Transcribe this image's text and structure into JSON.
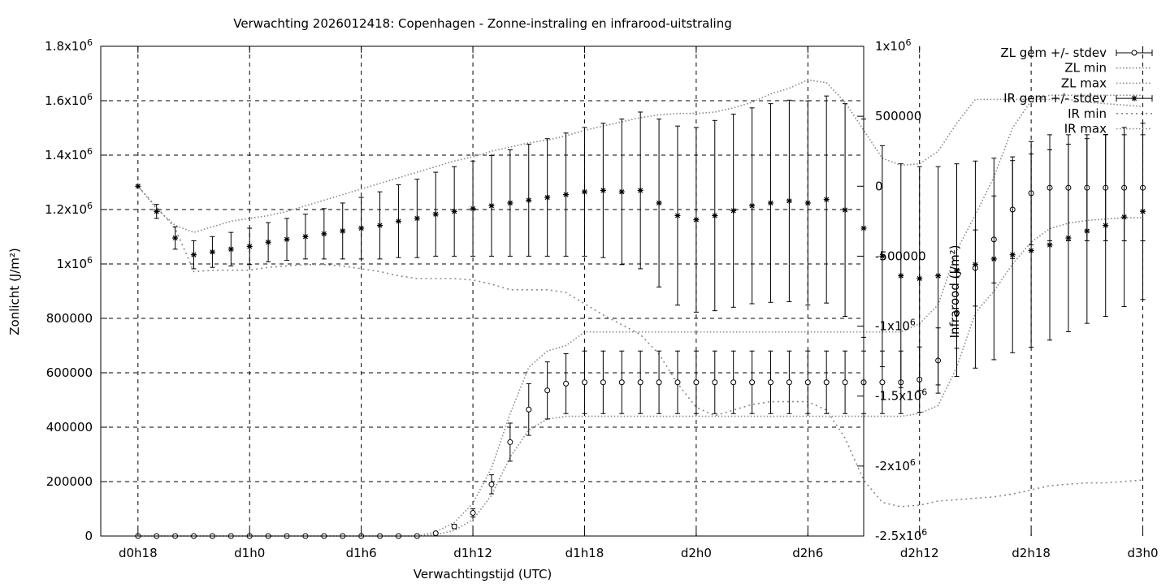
{
  "chart_data": {
    "type": "line",
    "title": "Verwachting 2026012418: Copenhagen - Zonne-instraling en infrarood-uitstraling",
    "xlabel": "Verwachtingstijd (UTC)",
    "ylabel_left": "Zonlicht (J/m²)",
    "ylabel_right": "Infrarood (J/m²)",
    "grid": true,
    "legend_position": "outside-top-right",
    "x_ticks": [
      "d0h18",
      "d1h0",
      "d1h6",
      "d1h12",
      "d1h18",
      "d2h0",
      "d2h6",
      "d2h12",
      "d2h18",
      "d3h0"
    ],
    "x_unit": "hours since d0h0",
    "xlim": [
      16,
      57
    ],
    "y_left": {
      "lim": [
        0,
        1800000
      ],
      "ticks": [
        {
          "value": 0,
          "base": "0",
          "exp": ""
        },
        {
          "value": 200000,
          "base": "200000",
          "exp": ""
        },
        {
          "value": 400000,
          "base": "400000",
          "exp": ""
        },
        {
          "value": 600000,
          "base": "600000",
          "exp": ""
        },
        {
          "value": 800000,
          "base": "800000",
          "exp": ""
        },
        {
          "value": 1000000,
          "base": "1x10",
          "exp": "6"
        },
        {
          "value": 1200000,
          "base": "1.2x10",
          "exp": "6"
        },
        {
          "value": 1400000,
          "base": "1.4x10",
          "exp": "6"
        },
        {
          "value": 1600000,
          "base": "1.6x10",
          "exp": "6"
        },
        {
          "value": 1800000,
          "base": "1.8x10",
          "exp": "6"
        }
      ]
    },
    "y_right": {
      "lim": [
        -2500000,
        1000000
      ],
      "ticks": [
        {
          "value": -2500000,
          "base": "-2.5x10",
          "exp": "6"
        },
        {
          "value": -2000000,
          "base": "-2x10",
          "exp": "6"
        },
        {
          "value": -1500000,
          "base": "-1.5x10",
          "exp": "6"
        },
        {
          "value": -1000000,
          "base": "-1x10",
          "exp": "6"
        },
        {
          "value": -500000,
          "base": "-500000",
          "exp": ""
        },
        {
          "value": 0,
          "base": "0",
          "exp": ""
        },
        {
          "value": 500000,
          "base": "500000",
          "exp": ""
        },
        {
          "value": 1000000,
          "base": "1x10",
          "exp": "6"
        }
      ]
    },
    "x_hours": [
      18,
      19,
      20,
      21,
      22,
      23,
      24,
      25,
      26,
      27,
      28,
      29,
      30,
      31,
      32,
      33,
      34,
      35,
      36,
      37,
      38,
      39,
      40,
      41,
      42,
      43,
      44,
      45,
      46,
      47,
      48,
      49,
      50,
      51,
      52,
      53,
      54,
      55,
      56,
      57,
      58,
      59,
      60,
      61,
      62,
      63,
      64,
      65,
      66,
      67,
      68,
      69,
      70,
      71,
      72
    ],
    "series": [
      {
        "name": "ZL gem +/- stdev",
        "axis": "left",
        "marker": "circle",
        "mean": [
          0,
          0,
          0,
          0,
          0,
          0,
          0,
          0,
          0,
          0,
          0,
          0,
          0,
          0,
          0,
          0,
          10000,
          35000,
          85000,
          190000,
          345000,
          465000,
          535000,
          560000,
          565000,
          565000,
          565000,
          565000,
          565000,
          565000,
          565000,
          565000,
          565000,
          565000,
          565000,
          565000,
          565000,
          565000,
          565000,
          565000,
          565000,
          565000,
          575000,
          645000,
          820000,
          985000,
          1090000,
          1200000,
          1260000,
          1280000,
          1280000,
          1280000,
          1280000,
          1280000,
          1280000
        ],
        "stdev": [
          0,
          0,
          0,
          0,
          0,
          0,
          0,
          0,
          0,
          0,
          0,
          0,
          0,
          0,
          0,
          0,
          3000,
          8000,
          15000,
          35000,
          70000,
          95000,
          105000,
          110000,
          115000,
          115000,
          115000,
          115000,
          115000,
          115000,
          115000,
          115000,
          115000,
          115000,
          115000,
          115000,
          115000,
          115000,
          115000,
          115000,
          115000,
          115000,
          120000,
          120000,
          130000,
          140000,
          160000,
          180000,
          190000,
          195000,
          195000,
          195000,
          195000,
          195000,
          195000
        ]
      },
      {
        "name": "ZL min",
        "axis": "left",
        "values": [
          0,
          0,
          0,
          0,
          0,
          0,
          0,
          0,
          0,
          0,
          0,
          0,
          0,
          0,
          0,
          0,
          5000,
          20000,
          60000,
          150000,
          290000,
          390000,
          430000,
          440000,
          440000,
          440000,
          440000,
          440000,
          440000,
          440000,
          440000,
          440000,
          440000,
          440000,
          440000,
          440000,
          440000,
          440000,
          440000,
          440000,
          440000,
          440000,
          450000,
          480000,
          620000,
          820000,
          900000,
          1000000,
          1080000,
          1130000,
          1150000,
          1160000,
          1165000,
          1170000,
          1170000
        ]
      },
      {
        "name": "ZL max",
        "axis": "left",
        "values": [
          0,
          0,
          0,
          0,
          0,
          0,
          0,
          0,
          0,
          0,
          0,
          0,
          0,
          0,
          0,
          0,
          15000,
          50000,
          120000,
          250000,
          450000,
          620000,
          680000,
          700000,
          750000,
          750000,
          750000,
          750000,
          750000,
          750000,
          750000,
          750000,
          750000,
          750000,
          750000,
          750000,
          750000,
          750000,
          750000,
          750000,
          750000,
          750000,
          780000,
          850000,
          1050000,
          1180000,
          1320000,
          1500000,
          1600000,
          1620000,
          1620000,
          1620000,
          1620000,
          1620000,
          1620000
        ]
      },
      {
        "name": "IR gem +/- stdev",
        "axis": "right",
        "marker": "star",
        "mean": [
          0,
          -180000,
          -370000,
          -490000,
          -470000,
          -450000,
          -430000,
          -400000,
          -380000,
          -360000,
          -340000,
          -320000,
          -300000,
          -280000,
          -250000,
          -230000,
          -200000,
          -180000,
          -160000,
          -140000,
          -120000,
          -100000,
          -80000,
          -60000,
          -40000,
          -30000,
          -40000,
          -30000,
          -120000,
          -210000,
          -240000,
          -210000,
          -175000,
          -140000,
          -120000,
          -105000,
          -120000,
          -95000,
          -170000,
          -300000,
          -500000,
          -640000,
          -660000,
          -640000,
          -600000,
          -560000,
          -520000,
          -490000,
          -460000,
          -420000,
          -370000,
          -320000,
          -280000,
          -220000,
          -180000
        ],
        "stdev": [
          0,
          50000,
          80000,
          100000,
          110000,
          120000,
          130000,
          140000,
          150000,
          160000,
          180000,
          200000,
          220000,
          240000,
          260000,
          280000,
          300000,
          320000,
          340000,
          360000,
          380000,
          400000,
          420000,
          440000,
          460000,
          480000,
          520000,
          560000,
          600000,
          640000,
          660000,
          680000,
          690000,
          700000,
          710000,
          720000,
          730000,
          740000,
          760000,
          780000,
          790000,
          800000,
          800000,
          780000,
          760000,
          740000,
          720000,
          700000,
          690000,
          680000,
          670000,
          660000,
          650000,
          640000,
          630000
        ]
      },
      {
        "name": "IR min",
        "axis": "right",
        "values": [
          0,
          -150000,
          -300000,
          -610000,
          -600000,
          -600000,
          -600000,
          -580000,
          -570000,
          -560000,
          -560000,
          -570000,
          -590000,
          -610000,
          -640000,
          -660000,
          -660000,
          -660000,
          -670000,
          -700000,
          -740000,
          -740000,
          -740000,
          -760000,
          -840000,
          -920000,
          -990000,
          -1060000,
          -1200000,
          -1410000,
          -1580000,
          -1640000,
          -1600000,
          -1560000,
          -1540000,
          -1540000,
          -1540000,
          -1600000,
          -1800000,
          -2100000,
          -2260000,
          -2290000,
          -2280000,
          -2250000,
          -2240000,
          -2230000,
          -2220000,
          -2200000,
          -2170000,
          -2140000,
          -2130000,
          -2120000,
          -2120000,
          -2110000,
          -2100000
        ]
      },
      {
        "name": "IR max",
        "axis": "right",
        "values": [
          0,
          -160000,
          -280000,
          -330000,
          -290000,
          -250000,
          -230000,
          -210000,
          -180000,
          -140000,
          -100000,
          -60000,
          -20000,
          20000,
          60000,
          100000,
          140000,
          180000,
          210000,
          250000,
          280000,
          310000,
          330000,
          360000,
          400000,
          430000,
          460000,
          490000,
          510000,
          520000,
          520000,
          530000,
          560000,
          600000,
          660000,
          700000,
          760000,
          740000,
          600000,
          400000,
          200000,
          150000,
          160000,
          250000,
          450000,
          620000,
          620000,
          620000,
          620000,
          620000,
          620000,
          600000,
          590000,
          580000,
          570000
        ]
      }
    ]
  }
}
